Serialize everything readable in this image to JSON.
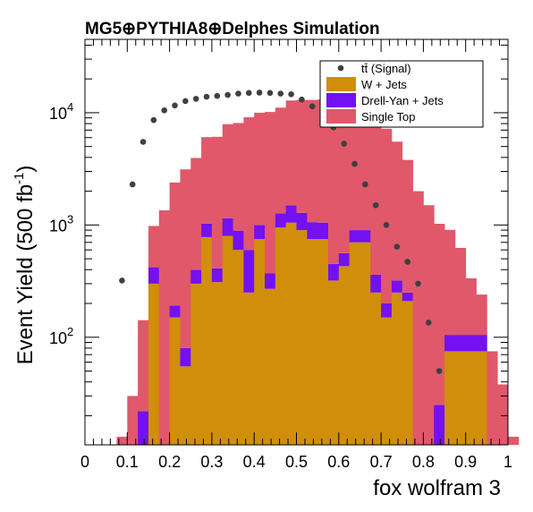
{
  "chart_data": {
    "type": "bar",
    "title": "MG5⊕PYTHIA8⊕Delphes Simulation",
    "xlabel": "fox wolfram 3",
    "ylabel_main": "Event Yield (500 fb",
    "ylabel_sup": "-1",
    "ylabel_close": ")",
    "yscale": "log",
    "xlim": [
      0,
      1
    ],
    "ylim": [
      11,
      45000
    ],
    "x_ticks": [
      {
        "v": 0,
        "label": "0"
      },
      {
        "v": 0.1,
        "label": "0.1"
      },
      {
        "v": 0.2,
        "label": "0.2"
      },
      {
        "v": 0.3,
        "label": "0.3"
      },
      {
        "v": 0.4,
        "label": "0.4"
      },
      {
        "v": 0.5,
        "label": "0.5"
      },
      {
        "v": 0.6,
        "label": "0.6"
      },
      {
        "v": 0.7,
        "label": "0.7"
      },
      {
        "v": 0.8,
        "label": "0.8"
      },
      {
        "v": 0.9,
        "label": "0.9"
      },
      {
        "v": 1,
        "label": "1"
      }
    ],
    "y_ticks": [
      {
        "v": 100,
        "base": "10",
        "exp": "2"
      },
      {
        "v": 1000,
        "base": "10",
        "exp": "3"
      },
      {
        "v": 10000,
        "base": "10",
        "exp": "4"
      }
    ],
    "bin_width": 0.025,
    "bin_edges_start": 0.075,
    "stacked_series": [
      {
        "name": "W + Jets",
        "color": "#d18e0a",
        "values": [
          0,
          0,
          0,
          300,
          0,
          150,
          55,
          300,
          780,
          310,
          800,
          600,
          250,
          750,
          270,
          950,
          1050,
          900,
          750,
          750,
          320,
          430,
          700,
          700,
          250,
          150,
          250,
          210,
          0,
          0,
          10,
          75,
          75,
          75,
          75,
          0,
          0,
          0,
          0
        ]
      },
      {
        "name": "Drell-Yan + Jets",
        "color": "#7311f0",
        "values": [
          0,
          0,
          22,
          120,
          0,
          42,
          25,
          100,
          250,
          100,
          350,
          290,
          350,
          250,
          100,
          320,
          450,
          380,
          310,
          300,
          130,
          130,
          200,
          200,
          110,
          50,
          70,
          40,
          0,
          0,
          15,
          30,
          30,
          30,
          30,
          0,
          0,
          0,
          0
        ]
      },
      {
        "name": "Single Top",
        "color": "#e0586a",
        "values": [
          13,
          30,
          120,
          560,
          1350,
          2200,
          3050,
          3550,
          5030,
          5690,
          6750,
          7210,
          8500,
          9000,
          9780,
          9830,
          11350,
          11720,
          11940,
          12050,
          12550,
          12440,
          10900,
          9600,
          8840,
          7000,
          5200,
          3550,
          2000,
          1500,
          1000,
          800,
          520,
          230,
          135,
          75,
          38,
          13,
          0
        ]
      }
    ],
    "signal": {
      "name": "tt̄ (Signal)",
      "color": "#3f3f3f",
      "x": [
        0.0875,
        0.1125,
        0.1375,
        0.1625,
        0.1875,
        0.2125,
        0.2375,
        0.2625,
        0.2875,
        0.3125,
        0.3375,
        0.3625,
        0.3875,
        0.4125,
        0.4375,
        0.4625,
        0.4875,
        0.5125,
        0.5375,
        0.5625,
        0.5875,
        0.6125,
        0.6375,
        0.6625,
        0.6875,
        0.7125,
        0.7375,
        0.7625,
        0.7875,
        0.8125,
        0.8375
      ],
      "y": [
        320,
        2300,
        5500,
        8600,
        10500,
        11600,
        12700,
        13300,
        13900,
        14100,
        14400,
        14800,
        15000,
        15100,
        15000,
        14800,
        14600,
        13100,
        11400,
        9600,
        7400,
        5300,
        3500,
        2300,
        1500,
        1000,
        640,
        470,
        300,
        135,
        50
      ]
    },
    "legend": {
      "position": "top-right",
      "entries": [
        {
          "label": "tt̄ (Signal)",
          "kind": "marker",
          "color": "#3f3f3f"
        },
        {
          "label": "W + Jets",
          "kind": "box",
          "color": "#d18e0a"
        },
        {
          "label": "Drell-Yan + Jets",
          "kind": "box",
          "color": "#7311f0"
        },
        {
          "label": "Single Top",
          "kind": "box",
          "color": "#e0586a"
        }
      ]
    }
  }
}
